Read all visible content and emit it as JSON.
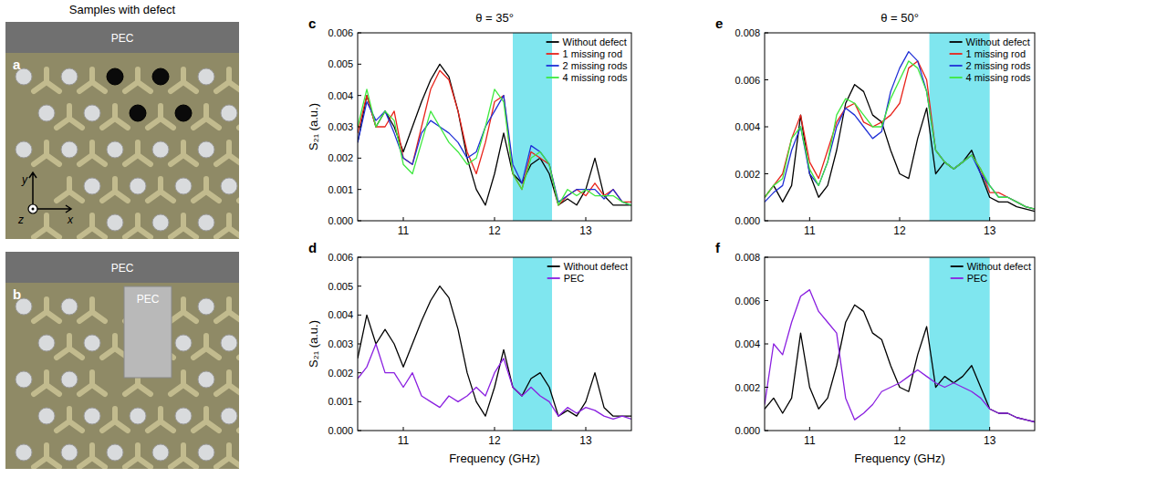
{
  "heading": "Samples with defect",
  "photos": [
    {
      "panel_label": "a",
      "strip_label": "PEC",
      "axis_labels": {
        "x": "x",
        "y": "y",
        "z": "z"
      }
    },
    {
      "panel_label": "b",
      "strip_label": "PEC",
      "block_label": "PEC"
    }
  ],
  "chart_data": [
    {
      "type": "line",
      "panel_label": "c",
      "title": "θ = 35°",
      "y_label": "S₂₁ (a.u.)",
      "x": [
        10.5,
        10.6,
        10.7,
        10.8,
        10.9,
        11.0,
        11.1,
        11.2,
        11.3,
        11.4,
        11.5,
        11.6,
        11.7,
        11.8,
        11.9,
        12.0,
        12.1,
        12.2,
        12.3,
        12.4,
        12.5,
        12.6,
        12.7,
        12.8,
        12.9,
        13.0,
        13.1,
        13.2,
        13.3,
        13.4,
        13.5
      ],
      "xlim": [
        10.5,
        13.5
      ],
      "xticks": [
        11,
        12,
        13
      ],
      "ylim": [
        0,
        0.006
      ],
      "yticks": [
        {
          "value": 0,
          "label": "0.000"
        },
        {
          "value": 0.001,
          "label": "0.001"
        },
        {
          "value": 0.002,
          "label": "0.002"
        },
        {
          "value": 0.003,
          "label": "0.003"
        },
        {
          "value": 0.004,
          "label": "0.004"
        },
        {
          "value": 0.005,
          "label": "0.005"
        },
        {
          "value": 0.006,
          "label": "0.006"
        }
      ],
      "shaded_band": {
        "x": [
          12.2,
          12.63
        ],
        "color": "#7fe6ef"
      },
      "legend": "upper right",
      "series": [
        {
          "name": "Without defect",
          "color": "#000000",
          "values": [
            0.0025,
            0.004,
            0.003,
            0.0035,
            0.003,
            0.0022,
            0.003,
            0.0038,
            0.0045,
            0.005,
            0.0046,
            0.0035,
            0.002,
            0.001,
            0.0005,
            0.0015,
            0.0028,
            0.0015,
            0.0012,
            0.0018,
            0.002,
            0.0015,
            0.0005,
            0.0007,
            0.0005,
            0.001,
            0.002,
            0.0008,
            0.0005,
            0.0005,
            0.0005
          ]
        },
        {
          "name": "1 missing rod",
          "color": "#e8231a",
          "values": [
            0.0028,
            0.004,
            0.003,
            0.003,
            0.0035,
            0.002,
            0.0018,
            0.003,
            0.0042,
            0.0048,
            0.0045,
            0.0035,
            0.0022,
            0.0015,
            0.0025,
            0.0038,
            0.004,
            0.0015,
            0.001,
            0.0022,
            0.002,
            0.0018,
            0.0005,
            0.0008,
            0.001,
            0.0008,
            0.0012,
            0.0008,
            0.001,
            0.0006,
            0.0006
          ]
        },
        {
          "name": "2 missing rods",
          "color": "#1f2fd6",
          "values": [
            0.0025,
            0.0038,
            0.0032,
            0.0035,
            0.0028,
            0.002,
            0.0018,
            0.0028,
            0.0032,
            0.003,
            0.0028,
            0.0025,
            0.002,
            0.0022,
            0.003,
            0.0035,
            0.004,
            0.0018,
            0.0012,
            0.0024,
            0.0022,
            0.0018,
            0.0006,
            0.0008,
            0.001,
            0.001,
            0.001,
            0.0007,
            0.001,
            0.0006,
            0.0005
          ]
        },
        {
          "name": "4 missing rods",
          "color": "#3ee83e",
          "values": [
            0.003,
            0.0042,
            0.003,
            0.0035,
            0.0032,
            0.0018,
            0.0015,
            0.0025,
            0.0035,
            0.003,
            0.0025,
            0.0022,
            0.0018,
            0.002,
            0.003,
            0.0042,
            0.0038,
            0.0015,
            0.001,
            0.002,
            0.0022,
            0.0018,
            0.0005,
            0.001,
            0.0008,
            0.001,
            0.0008,
            0.0008,
            0.0008,
            0.0006,
            0.0005
          ]
        }
      ]
    },
    {
      "type": "line",
      "panel_label": "d",
      "y_label": "S₂₁ (a.u.)",
      "x_label": "Frequency (GHz)",
      "x": [
        10.5,
        10.6,
        10.7,
        10.8,
        10.9,
        11.0,
        11.1,
        11.2,
        11.3,
        11.4,
        11.5,
        11.6,
        11.7,
        11.8,
        11.9,
        12.0,
        12.1,
        12.2,
        12.3,
        12.4,
        12.5,
        12.6,
        12.7,
        12.8,
        12.9,
        13.0,
        13.1,
        13.2,
        13.3,
        13.4,
        13.5
      ],
      "xlim": [
        10.5,
        13.5
      ],
      "xticks": [
        11,
        12,
        13
      ],
      "ylim": [
        0,
        0.006
      ],
      "yticks": [
        {
          "value": 0,
          "label": "0.000"
        },
        {
          "value": 0.001,
          "label": "0.001"
        },
        {
          "value": 0.002,
          "label": "0.002"
        },
        {
          "value": 0.003,
          "label": "0.003"
        },
        {
          "value": 0.004,
          "label": "0.004"
        },
        {
          "value": 0.005,
          "label": "0.005"
        },
        {
          "value": 0.006,
          "label": "0.006"
        }
      ],
      "shaded_band": {
        "x": [
          12.2,
          12.63
        ],
        "color": "#7fe6ef"
      },
      "legend": "upper right",
      "series": [
        {
          "name": "Without defect",
          "color": "#000000",
          "values": [
            0.0025,
            0.004,
            0.003,
            0.0035,
            0.003,
            0.0022,
            0.003,
            0.0038,
            0.0045,
            0.005,
            0.0046,
            0.0035,
            0.002,
            0.001,
            0.0005,
            0.0015,
            0.0028,
            0.0015,
            0.0012,
            0.0018,
            0.002,
            0.0015,
            0.0005,
            0.0007,
            0.0005,
            0.001,
            0.002,
            0.0008,
            0.0005,
            0.0005,
            0.0005
          ]
        },
        {
          "name": "PEC",
          "color": "#8a1fe0",
          "values": [
            0.0018,
            0.0022,
            0.003,
            0.002,
            0.002,
            0.0015,
            0.002,
            0.0012,
            0.001,
            0.0008,
            0.0012,
            0.001,
            0.0012,
            0.0015,
            0.0012,
            0.002,
            0.0025,
            0.0015,
            0.0012,
            0.0015,
            0.0012,
            0.001,
            0.0005,
            0.0008,
            0.0006,
            0.0008,
            0.0007,
            0.0005,
            0.0004,
            0.0005,
            0.0004
          ]
        }
      ]
    },
    {
      "type": "line",
      "panel_label": "e",
      "title": "θ = 50°",
      "x": [
        10.5,
        10.6,
        10.7,
        10.8,
        10.9,
        11.0,
        11.1,
        11.2,
        11.3,
        11.4,
        11.5,
        11.6,
        11.7,
        11.8,
        11.9,
        12.0,
        12.1,
        12.2,
        12.3,
        12.4,
        12.5,
        12.6,
        12.7,
        12.8,
        12.9,
        13.0,
        13.1,
        13.2,
        13.3,
        13.4,
        13.5
      ],
      "xlim": [
        10.5,
        13.5
      ],
      "xticks": [
        11,
        12,
        13
      ],
      "ylim": [
        0,
        0.008
      ],
      "yticks": [
        {
          "value": 0,
          "label": "0.000"
        },
        {
          "value": 0.002,
          "label": "0.002"
        },
        {
          "value": 0.004,
          "label": "0.004"
        },
        {
          "value": 0.006,
          "label": "0.006"
        },
        {
          "value": 0.008,
          "label": "0.008"
        }
      ],
      "shaded_band": {
        "x": [
          12.33,
          13.0
        ],
        "color": "#7fe6ef"
      },
      "legend": "upper right",
      "series": [
        {
          "name": "Without defect",
          "color": "#000000",
          "values": [
            0.001,
            0.0015,
            0.0008,
            0.0015,
            0.0045,
            0.002,
            0.001,
            0.0015,
            0.003,
            0.005,
            0.0058,
            0.0055,
            0.0045,
            0.0042,
            0.003,
            0.002,
            0.0018,
            0.0035,
            0.0048,
            0.002,
            0.0025,
            0.0022,
            0.0025,
            0.003,
            0.002,
            0.001,
            0.0008,
            0.0008,
            0.0006,
            0.0005,
            0.0004
          ]
        },
        {
          "name": "1 missing rod",
          "color": "#e8231a",
          "values": [
            0.001,
            0.0015,
            0.002,
            0.0035,
            0.0045,
            0.0025,
            0.0018,
            0.003,
            0.0042,
            0.0048,
            0.005,
            0.0042,
            0.004,
            0.0042,
            0.0045,
            0.005,
            0.0065,
            0.0068,
            0.006,
            0.003,
            0.0025,
            0.0022,
            0.0025,
            0.0028,
            0.0022,
            0.0012,
            0.0012,
            0.001,
            0.0008,
            0.0006,
            0.0005
          ]
        },
        {
          "name": "2 missing rods",
          "color": "#1f2fd6",
          "values": [
            0.0008,
            0.0012,
            0.0015,
            0.003,
            0.004,
            0.002,
            0.0015,
            0.0025,
            0.004,
            0.0048,
            0.0045,
            0.004,
            0.0035,
            0.0038,
            0.0055,
            0.0065,
            0.0072,
            0.0068,
            0.0055,
            0.003,
            0.0025,
            0.0022,
            0.0025,
            0.0028,
            0.002,
            0.0015,
            0.001,
            0.001,
            0.0008,
            0.0006,
            0.0005
          ]
        },
        {
          "name": "4 missing rods",
          "color": "#3ee83e",
          "values": [
            0.001,
            0.0015,
            0.0018,
            0.0035,
            0.004,
            0.0022,
            0.0015,
            0.0025,
            0.0045,
            0.0052,
            0.005,
            0.0045,
            0.004,
            0.004,
            0.0052,
            0.006,
            0.0068,
            0.0065,
            0.0055,
            0.003,
            0.0025,
            0.0022,
            0.0025,
            0.0028,
            0.0022,
            0.0015,
            0.001,
            0.001,
            0.0008,
            0.0006,
            0.0005
          ]
        }
      ]
    },
    {
      "type": "line",
      "panel_label": "f",
      "x_label": "Frequency (GHz)",
      "x": [
        10.5,
        10.6,
        10.7,
        10.8,
        10.9,
        11.0,
        11.1,
        11.2,
        11.3,
        11.4,
        11.5,
        11.6,
        11.7,
        11.8,
        11.9,
        12.0,
        12.1,
        12.2,
        12.3,
        12.4,
        12.5,
        12.6,
        12.7,
        12.8,
        12.9,
        13.0,
        13.1,
        13.2,
        13.3,
        13.4,
        13.5
      ],
      "xlim": [
        10.5,
        13.5
      ],
      "xticks": [
        11,
        12,
        13
      ],
      "ylim": [
        0,
        0.008
      ],
      "yticks": [
        {
          "value": 0,
          "label": "0.000"
        },
        {
          "value": 0.002,
          "label": "0.002"
        },
        {
          "value": 0.004,
          "label": "0.004"
        },
        {
          "value": 0.006,
          "label": "0.006"
        },
        {
          "value": 0.008,
          "label": "0.008"
        }
      ],
      "shaded_band": {
        "x": [
          12.33,
          13.0
        ],
        "color": "#7fe6ef"
      },
      "legend": "upper right",
      "series": [
        {
          "name": "Without defect",
          "color": "#000000",
          "values": [
            0.001,
            0.0015,
            0.0008,
            0.0015,
            0.0045,
            0.002,
            0.001,
            0.0015,
            0.003,
            0.005,
            0.0058,
            0.0055,
            0.0045,
            0.0042,
            0.003,
            0.002,
            0.0018,
            0.0035,
            0.0048,
            0.002,
            0.0025,
            0.0022,
            0.0025,
            0.003,
            0.002,
            0.001,
            0.0008,
            0.0008,
            0.0006,
            0.0005,
            0.0004
          ]
        },
        {
          "name": "PEC",
          "color": "#8a1fe0",
          "values": [
            0.0012,
            0.004,
            0.0035,
            0.005,
            0.0062,
            0.0065,
            0.0055,
            0.005,
            0.0045,
            0.0015,
            0.0005,
            0.0008,
            0.0012,
            0.0018,
            0.002,
            0.0022,
            0.0025,
            0.0028,
            0.0025,
            0.0022,
            0.002,
            0.0022,
            0.002,
            0.0018,
            0.0015,
            0.001,
            0.0008,
            0.0008,
            0.0006,
            0.0005,
            0.0004
          ]
        }
      ]
    }
  ]
}
